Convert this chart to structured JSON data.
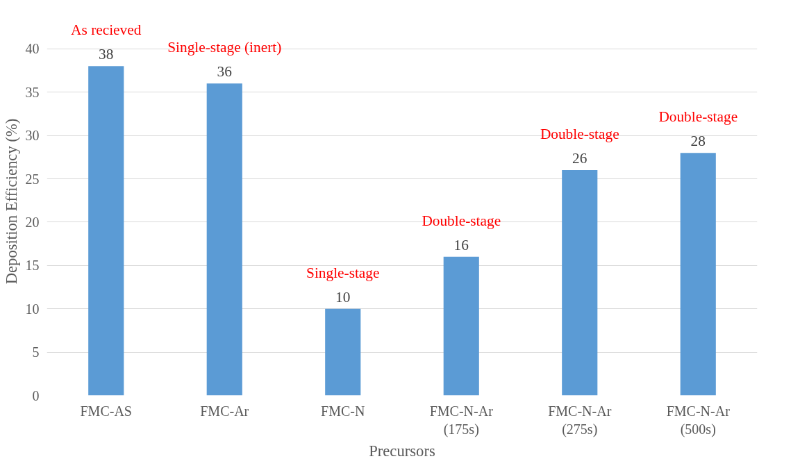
{
  "chart_data": {
    "type": "bar",
    "xlabel": "Precursors",
    "ylabel": "Deposition Efficiency (%)",
    "categories": [
      "FMC-AS",
      "FMC-Ar",
      "FMC-N",
      "FMC-N-Ar\n(175s)",
      "FMC-N-Ar\n(275s)",
      "FMC-N-Ar\n(500s)"
    ],
    "values": [
      38,
      36,
      10,
      16,
      26,
      28
    ],
    "color": "#5b9bd5",
    "ylim": [
      0,
      40
    ],
    "yticks": [
      0,
      5,
      10,
      15,
      20,
      25,
      30,
      35,
      40
    ],
    "grid": "y",
    "data_labels": true,
    "annotations": [
      {
        "text": "As recieved",
        "x": "FMC-AS",
        "y": 38
      },
      {
        "text": "Single-stage (inert)",
        "x": "FMC-Ar",
        "y": 36
      },
      {
        "text": "Single-stage",
        "x": "FMC-N",
        "y": 10
      },
      {
        "text": "Double-stage",
        "x": "FMC-N-Ar\n(175s)",
        "y": 16
      },
      {
        "text": "Double-stage",
        "x": "FMC-N-Ar\n(275s)",
        "y": 26
      },
      {
        "text": "Double-stage",
        "x": "FMC-N-Ar\n(500s)",
        "y": 28
      }
    ]
  }
}
